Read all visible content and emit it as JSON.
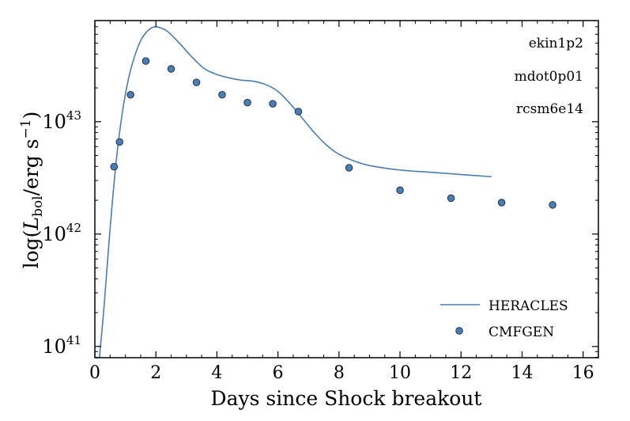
{
  "chart_data": {
    "type": "line+scatter",
    "xlabel": "Days since Shock breakout",
    "ylabel": {
      "prefix": "log(",
      "L": "L",
      "sub": "bol",
      "rest": "/erg s",
      "sup": "−1",
      "suffix": ")"
    },
    "xlim": [
      0,
      16.5
    ],
    "ylim_log10": [
      40.9,
      43.9
    ],
    "x_ticks": [
      0,
      2,
      4,
      6,
      8,
      10,
      12,
      14,
      16
    ],
    "x_tick_labels": [
      "0",
      "2",
      "4",
      "6",
      "8",
      "10",
      "12",
      "14",
      "16"
    ],
    "y_ticks": [
      {
        "exponent": 41,
        "base": "10",
        "exp_label": "41"
      },
      {
        "exponent": 42,
        "base": "10",
        "exp_label": "42"
      },
      {
        "exponent": 43,
        "base": "10",
        "exp_label": "43"
      }
    ],
    "annotations": [
      "ekin1p2",
      "mdot0p01",
      "rcsm6e14"
    ],
    "legend": {
      "position": "lower-right",
      "entries": [
        {
          "label": "HERACLES",
          "kind": "line"
        },
        {
          "label": "CMFGEN",
          "kind": "marker"
        }
      ]
    },
    "series": [
      {
        "name": "HERACLES",
        "kind": "line",
        "color": "#4a7db4",
        "x": [
          0.15,
          0.3,
          0.5,
          0.7,
          0.9,
          1.1,
          1.3,
          1.5,
          1.7,
          1.9,
          2.1,
          2.4,
          2.8,
          3.2,
          3.6,
          4.0,
          4.4,
          4.8,
          5.2,
          5.6,
          6.0,
          6.4,
          6.8,
          7.2,
          7.6,
          8.0,
          8.5,
          9.0,
          10.0,
          11.0,
          12.0,
          13.0
        ],
        "log10L": [
          40.9,
          41.35,
          42.05,
          42.65,
          43.08,
          43.38,
          43.58,
          43.72,
          43.8,
          43.84,
          43.84,
          43.8,
          43.69,
          43.57,
          43.47,
          43.42,
          43.39,
          43.37,
          43.36,
          43.33,
          43.27,
          43.16,
          43.03,
          42.9,
          42.79,
          42.71,
          42.65,
          42.61,
          42.57,
          42.55,
          42.53,
          42.51
        ]
      },
      {
        "name": "CMFGEN",
        "kind": "marker",
        "color": "#4a7db4",
        "x": [
          0.63,
          0.81,
          1.17,
          1.67,
          2.5,
          3.33,
          4.17,
          5.0,
          5.83,
          6.67,
          8.33,
          10.0,
          11.67,
          13.33,
          15.0
        ],
        "log10L": [
          42.6,
          42.82,
          43.24,
          43.54,
          43.47,
          43.35,
          43.24,
          43.17,
          43.16,
          43.09,
          42.59,
          42.39,
          42.32,
          42.28,
          42.26
        ]
      }
    ]
  }
}
